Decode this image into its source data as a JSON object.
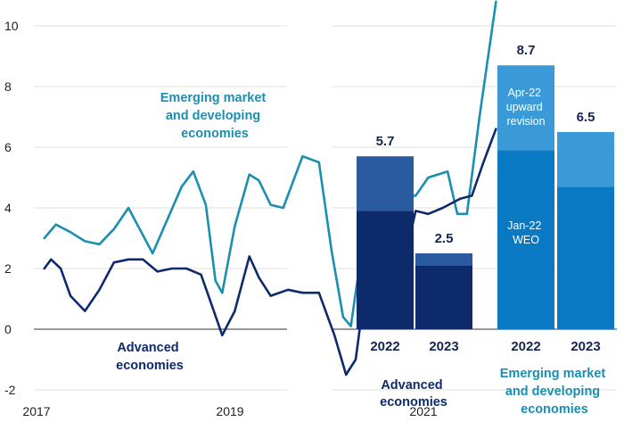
{
  "chart_data": [
    {
      "type": "line",
      "ylim": [
        -2.4,
        10.8
      ],
      "y_ticks": [
        "-2",
        "0",
        "2",
        "4",
        "6",
        "8",
        "10"
      ],
      "x_ticks": [
        "2017",
        "2019",
        "2021"
      ],
      "xlim": [
        2017.0,
        2022.25
      ],
      "series": [
        {
          "name": "Emerging market and developing economies",
          "label_lines": [
            "Emerging market",
            "and developing",
            "economies"
          ],
          "color": "#1a8fb0",
          "points": [
            [
              2017.08,
              3.0
            ],
            [
              2017.2,
              3.45
            ],
            [
              2017.35,
              3.2
            ],
            [
              2017.5,
              2.9
            ],
            [
              2017.65,
              2.8
            ],
            [
              2017.8,
              3.3
            ],
            [
              2017.95,
              4.0
            ],
            [
              2018.05,
              3.4
            ],
            [
              2018.2,
              2.5
            ],
            [
              2018.35,
              3.6
            ],
            [
              2018.5,
              4.7
            ],
            [
              2018.62,
              5.2
            ],
            [
              2018.75,
              4.1
            ],
            [
              2018.85,
              1.6
            ],
            [
              2018.92,
              1.2
            ],
            [
              2019.05,
              3.4
            ],
            [
              2019.2,
              5.1
            ],
            [
              2019.3,
              4.9
            ],
            [
              2019.42,
              4.1
            ],
            [
              2019.55,
              4.0
            ],
            [
              2019.75,
              5.7
            ],
            [
              2019.92,
              5.5
            ],
            [
              2020.05,
              2.6
            ],
            [
              2020.17,
              0.4
            ],
            [
              2020.25,
              0.1
            ],
            [
              2020.42,
              3.9
            ],
            [
              2020.5,
              3.8
            ],
            [
              2020.67,
              2.2
            ],
            [
              2020.83,
              4.4
            ],
            [
              2020.92,
              4.4
            ],
            [
              2021.05,
              5.0
            ],
            [
              2021.25,
              5.2
            ],
            [
              2021.35,
              3.8
            ],
            [
              2021.45,
              3.8
            ],
            [
              2021.58,
              7.0
            ],
            [
              2021.75,
              10.8
            ]
          ]
        },
        {
          "name": "Advanced economies",
          "label_lines": [
            "Advanced",
            "economies"
          ],
          "color": "#0d2a6b",
          "points": [
            [
              2017.08,
              2.0
            ],
            [
              2017.15,
              2.3
            ],
            [
              2017.25,
              2.0
            ],
            [
              2017.35,
              1.1
            ],
            [
              2017.5,
              0.6
            ],
            [
              2017.65,
              1.3
            ],
            [
              2017.8,
              2.2
            ],
            [
              2017.95,
              2.3
            ],
            [
              2018.1,
              2.3
            ],
            [
              2018.25,
              1.9
            ],
            [
              2018.4,
              2.0
            ],
            [
              2018.55,
              2.0
            ],
            [
              2018.7,
              1.8
            ],
            [
              2018.8,
              0.9
            ],
            [
              2018.92,
              -0.2
            ],
            [
              2019.05,
              0.6
            ],
            [
              2019.2,
              2.4
            ],
            [
              2019.3,
              1.7
            ],
            [
              2019.42,
              1.1
            ],
            [
              2019.6,
              1.3
            ],
            [
              2019.75,
              1.2
            ],
            [
              2019.92,
              1.2
            ],
            [
              2020.08,
              -0.2
            ],
            [
              2020.2,
              -1.5
            ],
            [
              2020.3,
              -1.0
            ],
            [
              2020.42,
              1.9
            ],
            [
              2020.58,
              0.8
            ],
            [
              2020.67,
              0.5
            ],
            [
              2020.8,
              2.2
            ],
            [
              2020.92,
              3.9
            ],
            [
              2021.05,
              3.8
            ],
            [
              2021.2,
              4.0
            ],
            [
              2021.38,
              4.3
            ],
            [
              2021.5,
              4.4
            ],
            [
              2021.62,
              5.5
            ],
            [
              2021.75,
              6.6
            ]
          ]
        }
      ]
    },
    {
      "type": "bar",
      "stacked": true,
      "groups": [
        {
          "name": "Advanced economies",
          "name_lines": [
            "Advanced",
            "economies"
          ],
          "bars": [
            {
              "year": "2022",
              "base": 3.9,
              "revision": 1.8,
              "total_label": "5.7"
            },
            {
              "year": "2023",
              "base": 2.1,
              "revision": 0.4,
              "total_label": "2.5"
            }
          ],
          "base_color": "#0d2a6b",
          "revision_color": "#2a5aa0"
        },
        {
          "name": "Emerging market and developing economies",
          "name_lines": [
            "Emerging market",
            "and developing",
            "economies"
          ],
          "bars": [
            {
              "year": "2022",
              "base": 5.9,
              "revision": 2.8,
              "total_label": "8.7"
            },
            {
              "year": "2023",
              "base": 4.7,
              "revision": 1.8,
              "total_label": "6.5"
            }
          ],
          "base_color": "#0a79c4",
          "revision_color": "#3a9ad8"
        }
      ],
      "annotations": {
        "revision": [
          "Apr-22",
          "upward",
          "revision"
        ],
        "base": [
          "Jan-22",
          "WEO"
        ]
      }
    }
  ]
}
